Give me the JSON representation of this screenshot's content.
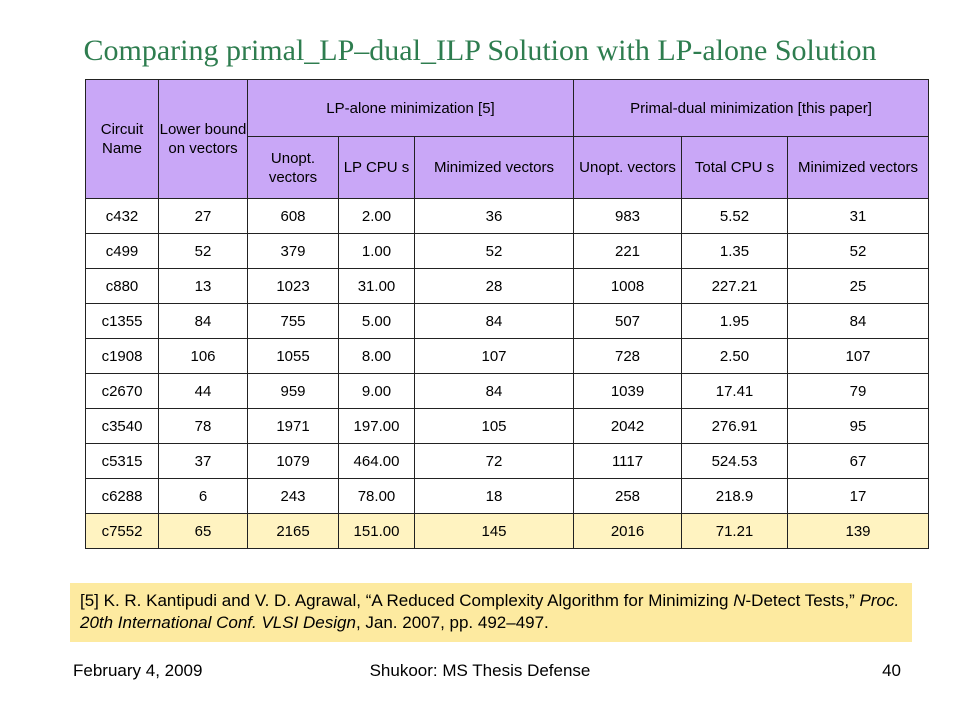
{
  "title": "Comparing primal_LP–dual_ILP Solution with LP-alone Solution",
  "table": {
    "header_top": {
      "circuit": "Circuit Name",
      "lower_bound": "Lower bound on vectors",
      "lp_group": "LP-alone minimization [5]",
      "pd_group": "Primal-dual minimization [this paper]"
    },
    "header_sub": {
      "lp_unopt": "Unopt. vectors",
      "lp_cpu": "LP CPU s",
      "lp_min": "Minimized vectors",
      "pd_unopt": "Unopt. vectors",
      "pd_cpu": "Total CPU s",
      "pd_min": "Minimized vectors"
    },
    "rows": [
      [
        "c432",
        "27",
        "608",
        "2.00",
        "36",
        "983",
        "5.52",
        "31"
      ],
      [
        "c499",
        "52",
        "379",
        "1.00",
        "52",
        "221",
        "1.35",
        "52"
      ],
      [
        "c880",
        "13",
        "1023",
        "31.00",
        "28",
        "1008",
        "227.21",
        "25"
      ],
      [
        "c1355",
        "84",
        "755",
        "5.00",
        "84",
        "507",
        "1.95",
        "84"
      ],
      [
        "c1908",
        "106",
        "1055",
        "8.00",
        "107",
        "728",
        "2.50",
        "107"
      ],
      [
        "c2670",
        "44",
        "959",
        "9.00",
        "84",
        "1039",
        "17.41",
        "79"
      ],
      [
        "c3540",
        "78",
        "1971",
        "197.00",
        "105",
        "2042",
        "276.91",
        "95"
      ],
      [
        "c5315",
        "37",
        "1079",
        "464.00",
        "72",
        "1117",
        "524.53",
        "67"
      ],
      [
        "c6288",
        "6",
        "243",
        "78.00",
        "18",
        "258",
        "218.9",
        "17"
      ],
      [
        "c7552",
        "65",
        "2165",
        "151.00",
        "145",
        "2016",
        "71.21",
        "139"
      ]
    ],
    "highlighted_row": "c7552"
  },
  "reference": {
    "part1": "[5] K. R. Kantipudi and V. D. Agrawal, “A Reduced Complexity Algorithm for Minimizing ",
    "part2_italic": "N",
    "part3": "-Detect Tests,” ",
    "part4_italic": "Proc. 20th International Conf. VLSI Design",
    "part5": ", Jan. 2007, pp. 492–497."
  },
  "footer": {
    "date": "February 4, 2009",
    "center": "Shukoor: MS Thesis Defense",
    "page": "40"
  },
  "colors": {
    "title": "#2e7d4f",
    "header_bg": "#c9a7f7",
    "highlight_bg": "#fff3c1",
    "reference_bg": "#fdeaa0"
  }
}
